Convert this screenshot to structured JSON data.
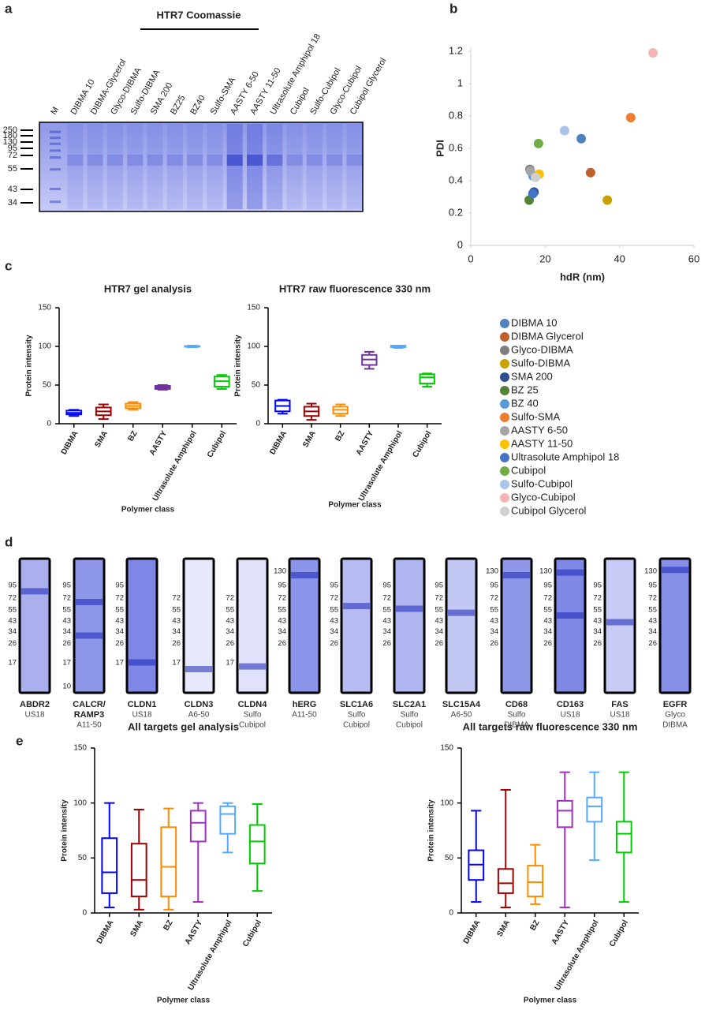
{
  "panel_labels": [
    "a",
    "b",
    "c",
    "d",
    "e"
  ],
  "gel_a": {
    "title": "HTR7 Coomassie",
    "lanes": [
      "M",
      "DIBMA 10",
      "DIBMA-Glycerol",
      "Glyco-DIBMA",
      "Sulfo-DIBMA",
      "SMA 200",
      "BZ25",
      "BZ40",
      "Sulfo-SMA",
      "AASTY 6-50",
      "AASTY 11-50",
      "Ultrasolute Amphipol 18",
      "Cubipol",
      "Sulfo-Cubipol",
      "Glyco-Cubipol",
      "Cubipol Glycerol"
    ],
    "markers": [
      250,
      180,
      130,
      95,
      72,
      55,
      43,
      34
    ]
  },
  "chart_data": [
    {
      "type": "scatter",
      "xlabel": "hdR (nm)",
      "ylabel": "PDI",
      "xlim": [
        0,
        60
      ],
      "xticks": [
        0,
        20,
        40,
        60
      ],
      "ylim": [
        0,
        1.2
      ],
      "yticks": [
        0,
        0.2,
        0.4,
        0.6,
        0.8,
        1,
        1.2
      ],
      "series": [
        {
          "name": "DIBMA 10",
          "color": "#4f81bd",
          "x": [
            29.7
          ],
          "values": [
            0.66
          ]
        },
        {
          "name": "DIBMA Glycerol",
          "color": "#c0612b",
          "x": [
            32.2
          ],
          "values": [
            0.45
          ]
        },
        {
          "name": "Glyco-DIBMA",
          "color": "#7f7f7f",
          "x": [
            15.9
          ],
          "values": [
            0.47
          ]
        },
        {
          "name": "Sulfo-DIBMA",
          "color": "#c9a000",
          "x": [
            36.7
          ],
          "values": [
            0.28
          ]
        },
        {
          "name": "SMA 200",
          "color": "#2f4f8f",
          "x": [
            17
          ],
          "values": [
            0.33
          ]
        },
        {
          "name": "BZ 25",
          "color": "#548235",
          "x": [
            15.7
          ],
          "values": [
            0.28
          ]
        },
        {
          "name": "BZ 40",
          "color": "#5b9bd5",
          "x": [
            16.7
          ],
          "values": [
            0.43
          ]
        },
        {
          "name": "Sulfo-SMA",
          "color": "#ed7d31",
          "x": [
            43
          ],
          "values": [
            0.79
          ]
        },
        {
          "name": "AASTY 6-50",
          "color": "#a5a5a5",
          "x": [
            16
          ],
          "values": [
            0.46
          ]
        },
        {
          "name": "AASTY 11-50",
          "color": "#ffc000",
          "x": [
            18.4
          ],
          "values": [
            0.44
          ]
        },
        {
          "name": "Ultrasolute Amphipol 18",
          "color": "#4472c4",
          "x": [
            16.7
          ],
          "values": [
            0.32
          ]
        },
        {
          "name": "Cubipol",
          "color": "#70ad47",
          "x": [
            18.2
          ],
          "values": [
            0.63
          ]
        },
        {
          "name": "Sulfo-Cubipol",
          "color": "#a9c4e8",
          "x": [
            25.2
          ],
          "values": [
            0.71
          ]
        },
        {
          "name": "Glyco-Cubipol",
          "color": "#f4b6b2",
          "x": [
            49
          ],
          "values": [
            1.19
          ]
        },
        {
          "name": "Cubipol Glycerol",
          "color": "#d0d0d0",
          "x": [
            17.4
          ],
          "values": [
            0.42
          ]
        }
      ]
    },
    {
      "type": "box",
      "title": "HTR7 gel analysis",
      "ylabel": "Protein intensity",
      "xlabel": "Polymer class",
      "categories": [
        "DIBMA",
        "SMA",
        "BZ",
        "AASTY",
        "Ultrasolute Amphipol",
        "Cubipol"
      ],
      "colors": [
        "#0000ff",
        "#a00000",
        "#ff8c00",
        "#7030a0",
        "#55aaff",
        "#00cc00"
      ],
      "ylim": [
        0,
        150
      ],
      "yticks": [
        0,
        50,
        100,
        150
      ],
      "boxes": [
        {
          "min": 10,
          "q1": 12,
          "median": 14,
          "q3": 17,
          "max": 18
        },
        {
          "min": 6,
          "q1": 11,
          "median": 16,
          "q3": 21,
          "max": 25
        },
        {
          "min": 18,
          "q1": 20,
          "median": 23,
          "q3": 26,
          "max": 28
        },
        {
          "min": 44,
          "q1": 45,
          "median": 47,
          "q3": 49,
          "max": 50
        },
        {
          "min": 99,
          "q1": 99.5,
          "median": 100,
          "q3": 100.5,
          "max": 101
        },
        {
          "min": 45,
          "q1": 48,
          "median": 55,
          "q3": 61,
          "max": 63
        }
      ]
    },
    {
      "type": "box",
      "title": "HTR7 raw fluorescence 330 nm",
      "ylabel": "Protein intensity",
      "xlabel": "Polymer class",
      "categories": [
        "DIBMA",
        "SMA",
        "BZ",
        "AASTY",
        "Ultrasolute Amphipol",
        "Cubipol"
      ],
      "colors": [
        "#0000ff",
        "#a00000",
        "#ff8c00",
        "#7030a0",
        "#55aaff",
        "#00cc00"
      ],
      "ylim": [
        0,
        150
      ],
      "yticks": [
        0,
        50,
        100,
        150
      ],
      "boxes": [
        {
          "min": 13,
          "q1": 16,
          "median": 23,
          "q3": 30,
          "max": 31
        },
        {
          "min": 5,
          "q1": 10,
          "median": 16,
          "q3": 22,
          "max": 26
        },
        {
          "min": 10,
          "q1": 13,
          "median": 18,
          "q3": 22,
          "max": 25
        },
        {
          "min": 71,
          "q1": 76,
          "median": 83,
          "q3": 89,
          "max": 93
        },
        {
          "min": 98,
          "q1": 99,
          "median": 100,
          "q3": 101,
          "max": 101
        },
        {
          "min": 48,
          "q1": 52,
          "median": 60,
          "q3": 64,
          "max": 65
        }
      ]
    },
    {
      "type": "box",
      "title": "All targets gel analysis",
      "ylabel": "Protein intensity",
      "xlabel": "Polymer class",
      "categories": [
        "DIBMA",
        "SMA",
        "BZ",
        "AASTY",
        "Ultrasolute Amphipol",
        "Cubipol"
      ],
      "colors": [
        "#0000ff",
        "#a00000",
        "#ff8c00",
        "#a030c0",
        "#55aaff",
        "#00cc00"
      ],
      "ylim": [
        0,
        150
      ],
      "yticks": [
        0,
        50,
        100,
        150
      ],
      "boxes": [
        {
          "min": 5,
          "q1": 18,
          "median": 37,
          "q3": 68,
          "max": 100
        },
        {
          "min": 3,
          "q1": 15,
          "median": 30,
          "q3": 63,
          "max": 94
        },
        {
          "min": 3,
          "q1": 15,
          "median": 42,
          "q3": 78,
          "max": 95
        },
        {
          "min": 10,
          "q1": 65,
          "median": 82,
          "q3": 93,
          "max": 100
        },
        {
          "min": 55,
          "q1": 72,
          "median": 90,
          "q3": 97,
          "max": 100
        },
        {
          "min": 20,
          "q1": 45,
          "median": 65,
          "q3": 80,
          "max": 99
        }
      ]
    },
    {
      "type": "box",
      "title": "All targets raw fluorescence 330 nm",
      "ylabel": "Protein intensity",
      "xlabel": "Polymer class",
      "categories": [
        "DIBMA",
        "SMA",
        "BZ",
        "AASTY",
        "Ultrasolute Amphipol",
        "Cubipol"
      ],
      "colors": [
        "#0000ff",
        "#a00000",
        "#ff8c00",
        "#a030c0",
        "#55aaff",
        "#00cc00"
      ],
      "ylim": [
        0,
        150
      ],
      "yticks": [
        0,
        50,
        100,
        150
      ],
      "boxes": [
        {
          "min": 10,
          "q1": 30,
          "median": 44,
          "q3": 57,
          "max": 93
        },
        {
          "min": 5,
          "q1": 18,
          "median": 27,
          "q3": 40,
          "max": 112
        },
        {
          "min": 8,
          "q1": 15,
          "median": 28,
          "q3": 43,
          "max": 62
        },
        {
          "min": 5,
          "q1": 78,
          "median": 93,
          "q3": 102,
          "max": 128
        },
        {
          "min": 48,
          "q1": 83,
          "median": 97,
          "q3": 105,
          "max": 128
        },
        {
          "min": 10,
          "q1": 55,
          "median": 72,
          "q3": 83,
          "max": 128
        }
      ]
    }
  ],
  "gels_d": [
    {
      "name": [
        "ABDR2"
      ],
      "polymer": [
        "US18"
      ],
      "markers": [
        95,
        72,
        55,
        43,
        34,
        26,
        17
      ]
    },
    {
      "name": [
        "CALCR/",
        "RAMP3"
      ],
      "polymer": [
        "A11-50"
      ],
      "markers": [
        95,
        72,
        55,
        43,
        34,
        26,
        17,
        10
      ]
    },
    {
      "name": [
        "CLDN1"
      ],
      "polymer": [
        "US18"
      ],
      "markers": [
        95,
        72,
        55,
        43,
        34,
        26,
        17
      ]
    },
    {
      "name": [
        "CLDN3"
      ],
      "polymer": [
        "A6-50"
      ],
      "markers": [
        72,
        55,
        43,
        34,
        26,
        17
      ]
    },
    {
      "name": [
        "CLDN4"
      ],
      "polymer": [
        "Sulfo",
        "Cubipol"
      ],
      "markers": [
        72,
        55,
        43,
        34,
        26,
        17
      ]
    },
    {
      "name": [
        "hERG"
      ],
      "polymer": [
        "A11-50"
      ],
      "markers": [
        130,
        95,
        72,
        55,
        43,
        34,
        26
      ]
    },
    {
      "name": [
        "SLC1A6"
      ],
      "polymer": [
        "Sulfo",
        "Cubipol"
      ],
      "markers": [
        95,
        72,
        55,
        43,
        34,
        26
      ]
    },
    {
      "name": [
        "SLC2A1"
      ],
      "polymer": [
        "Sulfo",
        "Cubipol"
      ],
      "markers": [
        95,
        72,
        55,
        43,
        34,
        26
      ]
    },
    {
      "name": [
        "SLC15A4"
      ],
      "polymer": [
        "A6-50"
      ],
      "markers": [
        95,
        72,
        55,
        43,
        34,
        26
      ]
    },
    {
      "name": [
        "CD68"
      ],
      "polymer": [
        "Sulfo",
        "DIBMA"
      ],
      "markers": [
        130,
        95,
        72,
        55,
        43,
        34,
        26
      ]
    },
    {
      "name": [
        "CD163"
      ],
      "polymer": [
        "US18"
      ],
      "markers": [
        130,
        95,
        72,
        55,
        43,
        34,
        26
      ]
    },
    {
      "name": [
        "FAS"
      ],
      "polymer": [
        "US18"
      ],
      "markers": [
        95,
        72,
        55,
        43,
        34,
        26
      ]
    },
    {
      "name": [
        "EGFR"
      ],
      "polymer": [
        "Glyco",
        "DIBMA"
      ],
      "markers": [
        130,
        95,
        72,
        55,
        43,
        34,
        26
      ]
    }
  ]
}
